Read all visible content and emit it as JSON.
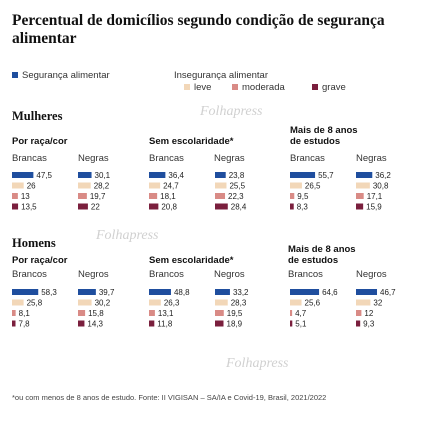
{
  "title": "Percentual de domicílios segundo condição de segurança alimentar",
  "legend": {
    "seguranca": "Segurança alimentar",
    "inseguranca": "Insegurança alimentar",
    "leve": "leve",
    "moderada": "moderada",
    "grave": "grave"
  },
  "colors": {
    "seguranca": "#1f4e9e",
    "leve": "#f2d7b8",
    "moderada": "#d98b86",
    "grave": "#7a1f3d"
  },
  "watermark": "Folhapress",
  "footnote": "*ou com menos de 8 anos de estudo. Fonte: II VIGISAN – SA/IA e Covid-19, Brasil, 2021/2022",
  "chart_data": {
    "type": "bar",
    "categories": [
      "Segurança alimentar",
      "Insegurança leve",
      "Insegurança moderada",
      "Insegurança grave"
    ],
    "sections": [
      {
        "name": "Mulheres",
        "groups": [
          {
            "title": "Por raça/cor",
            "series": [
              {
                "name": "Brancas",
                "values": [
                  47.5,
                  26,
                  13,
                  13.5
                ],
                "labels": [
                  "47,5",
                  "26",
                  "13",
                  "13,5"
                ]
              },
              {
                "name": "Negras",
                "values": [
                  30.1,
                  28.2,
                  19.7,
                  22
                ],
                "labels": [
                  "30,1",
                  "28,2",
                  "19,7",
                  "22"
                ]
              }
            ]
          },
          {
            "title": "Sem escolaridade*",
            "series": [
              {
                "name": "Brancas",
                "values": [
                  36.4,
                  24.7,
                  18.1,
                  20.8
                ],
                "labels": [
                  "36,4",
                  "24,7",
                  "18,1",
                  "20,8"
                ]
              },
              {
                "name": "Negras",
                "values": [
                  23.8,
                  25.5,
                  22.3,
                  28.4
                ],
                "labels": [
                  "23,8",
                  "25,5",
                  "22,3",
                  "28,4"
                ]
              }
            ]
          },
          {
            "title": "Mais de 8 anos de estudos",
            "series": [
              {
                "name": "Brancas",
                "values": [
                  55.7,
                  26.5,
                  9.5,
                  8.3
                ],
                "labels": [
                  "55,7",
                  "26,5",
                  "9,5",
                  "8,3"
                ]
              },
              {
                "name": "Negras",
                "values": [
                  36.2,
                  30.8,
                  17.1,
                  15.9
                ],
                "labels": [
                  "36,2",
                  "30,8",
                  "17,1",
                  "15,9"
                ]
              }
            ]
          }
        ]
      },
      {
        "name": "Homens",
        "groups": [
          {
            "title": "Por raça/cor",
            "series": [
              {
                "name": "Brancos",
                "values": [
                  58.3,
                  25.8,
                  8.1,
                  7.8
                ],
                "labels": [
                  "58,3",
                  "25,8",
                  "8,1",
                  "7,8"
                ]
              },
              {
                "name": "Negros",
                "values": [
                  39.7,
                  30.2,
                  15.8,
                  14.3
                ],
                "labels": [
                  "39,7",
                  "30,2",
                  "15,8",
                  "14,3"
                ]
              }
            ]
          },
          {
            "title": "Sem escolaridade*",
            "series": [
              {
                "name": "Brancos",
                "values": [
                  48.8,
                  26.3,
                  13.1,
                  11.8
                ],
                "labels": [
                  "48,8",
                  "26,3",
                  "13,1",
                  "11,8"
                ]
              },
              {
                "name": "Negros",
                "values": [
                  33.2,
                  28.3,
                  19.5,
                  18.9
                ],
                "labels": [
                  "33,2",
                  "28,3",
                  "19,5",
                  "18,9"
                ]
              }
            ]
          },
          {
            "title": "Mais de 8 anos de estudos",
            "series": [
              {
                "name": "Brancos",
                "values": [
                  64.6,
                  25.6,
                  4.7,
                  5.1
                ],
                "labels": [
                  "64,6",
                  "25,6",
                  "4,7",
                  "5,1"
                ]
              },
              {
                "name": "Negros",
                "values": [
                  46.7,
                  32,
                  12,
                  9.3
                ],
                "labels": [
                  "46,7",
                  "32",
                  "12",
                  "9,3"
                ]
              }
            ]
          }
        ]
      }
    ]
  }
}
